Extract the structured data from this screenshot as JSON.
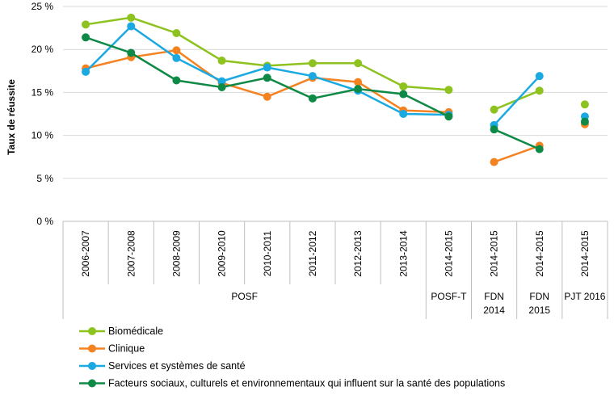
{
  "chart_data": {
    "type": "line",
    "ylabel": "Taux de réussite",
    "ylim": [
      0,
      25
    ],
    "yticks": [
      "0 %",
      "5 %",
      "10 %",
      "15 %",
      "20 %",
      "25 %"
    ],
    "categories": [
      "2006-2007",
      "2007-2008",
      "2008-2009",
      "2009-2010",
      "2010-2011",
      "2011-2012",
      "2012-2013",
      "2013-2014",
      "2014-2015",
      "2014-2015",
      "2014-2015",
      "2014-2015"
    ],
    "groups": [
      {
        "label": "POSF",
        "span": 8
      },
      {
        "label": "POSF-T",
        "span": 1
      },
      {
        "label": "FDN 2014",
        "lines": [
          "FDN",
          "2014"
        ],
        "span": 1
      },
      {
        "label": "FDN 2015",
        "lines": [
          "FDN",
          "2015"
        ],
        "span": 1
      },
      {
        "label": "PJT 2016",
        "span": 1
      }
    ],
    "grid": true,
    "legend_position": "bottom",
    "series": [
      {
        "name": "Biomédicale",
        "color": "#8dc21f",
        "values": [
          22.9,
          23.7,
          21.9,
          18.7,
          18.1,
          18.4,
          18.4,
          15.7,
          15.3,
          13.0,
          15.2,
          13.6
        ]
      },
      {
        "name": "Clinique",
        "color": "#f58220",
        "values": [
          17.8,
          19.1,
          19.9,
          16.1,
          14.5,
          16.7,
          16.2,
          12.9,
          12.7,
          6.9,
          8.8,
          11.3
        ]
      },
      {
        "name": "Services et systèmes de santé",
        "color": "#1ba9e1",
        "values": [
          17.4,
          22.7,
          19.0,
          16.3,
          17.9,
          16.9,
          15.2,
          12.5,
          12.4,
          11.2,
          16.9,
          12.2
        ]
      },
      {
        "name": "Facteurs sociaux, culturels et environnementaux qui influent sur la santé des populations",
        "color": "#0e8a46",
        "values": [
          21.4,
          19.6,
          16.4,
          15.6,
          16.7,
          14.3,
          15.4,
          14.8,
          12.2,
          10.7,
          8.4,
          11.6
        ]
      }
    ],
    "segments": [
      [
        0,
        8
      ],
      [
        9,
        10
      ],
      [
        11,
        11
      ]
    ]
  }
}
